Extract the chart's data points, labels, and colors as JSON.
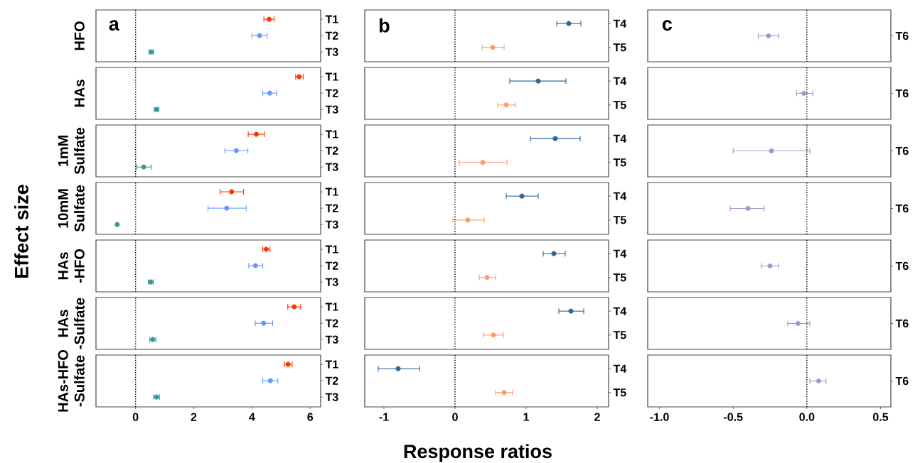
{
  "chart_data": [
    {
      "type": "scatter",
      "orientation": "horizontal",
      "title": "a",
      "ylabel": "HFO",
      "annotations": [
        "Effect size",
        "Response ratios"
      ],
      "categories": [
        "T1",
        "T2",
        "T3"
      ],
      "values": [
        4.59,
        4.26,
        0.54
      ],
      "errors": [
        [
          4.41,
          4.76
        ],
        [
          4.0,
          4.52
        ],
        [
          0.46,
          0.62
        ]
      ],
      "colors": [
        "#ff3300",
        "#6699ff",
        "#339999"
      ],
      "xlim": [
        -1.36,
        6.36
      ],
      "tick_labels": "y",
      "ref_lines": [
        {
          "axis": "x",
          "value": 0,
          "line_style": "dotted"
        }
      ]
    },
    {
      "type": "scatter",
      "orientation": "horizontal",
      "title": "b",
      "categories": [
        "T4",
        "T5"
      ],
      "values": [
        1.6,
        0.53
      ],
      "errors": [
        [
          1.43,
          1.77
        ],
        [
          0.38,
          0.69
        ]
      ],
      "colors": [
        "#336699",
        "#ff9966"
      ],
      "xlim": [
        -1.27,
        2.16
      ],
      "tick_labels": "y",
      "ref_lines": [
        {
          "axis": "x",
          "value": 0,
          "line_style": "dotted"
        }
      ]
    },
    {
      "type": "scatter",
      "orientation": "horizontal",
      "title": "c",
      "categories": [
        "T6"
      ],
      "values": [
        -0.26
      ],
      "errors": [
        [
          -0.33,
          -0.19
        ]
      ],
      "colors": [
        "#9999cc"
      ],
      "xlim": [
        -1.08,
        0.57
      ],
      "tick_labels": "y",
      "ref_lines": [
        {
          "axis": "x",
          "value": 0,
          "line_style": "dotted"
        }
      ]
    },
    {
      "type": "scatter",
      "orientation": "horizontal",
      "ylabel": "HAs",
      "categories": [
        "T1",
        "T2",
        "T3"
      ],
      "values": [
        5.62,
        4.61,
        0.72
      ],
      "errors": [
        [
          5.5,
          5.76
        ],
        [
          4.37,
          4.85
        ],
        [
          0.64,
          0.8
        ]
      ],
      "colors": [
        "#ff3300",
        "#6699ff",
        "#339999"
      ],
      "xlim": [
        -1.36,
        6.36
      ],
      "tick_labels": "y",
      "ref_lines": [
        {
          "axis": "x",
          "value": 0,
          "line_style": "dotted"
        }
      ]
    },
    {
      "type": "scatter",
      "orientation": "horizontal",
      "categories": [
        "T4",
        "T5"
      ],
      "values": [
        1.17,
        0.72
      ],
      "errors": [
        [
          0.77,
          1.56
        ],
        [
          0.6,
          0.85
        ]
      ],
      "colors": [
        "#336699",
        "#ff9966"
      ],
      "xlim": [
        -1.27,
        2.16
      ],
      "tick_labels": "y",
      "ref_lines": [
        {
          "axis": "x",
          "value": 0,
          "line_style": "dotted"
        }
      ]
    },
    {
      "type": "scatter",
      "orientation": "horizontal",
      "categories": [
        "T6"
      ],
      "values": [
        -0.02
      ],
      "errors": [
        [
          -0.07,
          0.04
        ]
      ],
      "colors": [
        "#9999cc"
      ],
      "xlim": [
        -1.08,
        0.57
      ],
      "tick_labels": "y",
      "ref_lines": [
        {
          "axis": "x",
          "value": 0,
          "line_style": "dotted"
        }
      ]
    },
    {
      "type": "scatter",
      "orientation": "horizontal",
      "ylabel": "1mM Sulfate",
      "categories": [
        "T1",
        "T2",
        "T3"
      ],
      "values": [
        4.15,
        3.46,
        0.28
      ],
      "errors": [
        [
          3.87,
          4.43
        ],
        [
          3.07,
          3.86
        ],
        [
          0.04,
          0.54
        ]
      ],
      "colors": [
        "#ff3300",
        "#6699ff",
        "#339999"
      ],
      "xlim": [
        -1.36,
        6.36
      ],
      "tick_labels": "y",
      "ref_lines": [
        {
          "axis": "x",
          "value": 0,
          "line_style": "dotted"
        }
      ]
    },
    {
      "type": "scatter",
      "orientation": "horizontal",
      "categories": [
        "T4",
        "T5"
      ],
      "values": [
        1.41,
        0.39
      ],
      "errors": [
        [
          1.06,
          1.76
        ],
        [
          0.06,
          0.73
        ]
      ],
      "colors": [
        "#336699",
        "#ff9966"
      ],
      "xlim": [
        -1.27,
        2.16
      ],
      "tick_labels": "y",
      "ref_lines": [
        {
          "axis": "x",
          "value": 0,
          "line_style": "dotted"
        }
      ]
    },
    {
      "type": "scatter",
      "orientation": "horizontal",
      "categories": [
        "T6"
      ],
      "values": [
        -0.24
      ],
      "errors": [
        [
          -0.5,
          0.02
        ]
      ],
      "colors": [
        "#9999cc"
      ],
      "xlim": [
        -1.08,
        0.57
      ],
      "tick_labels": "y",
      "ref_lines": [
        {
          "axis": "x",
          "value": 0,
          "line_style": "dotted"
        }
      ]
    },
    {
      "type": "scatter",
      "orientation": "horizontal",
      "ylabel": "10mM Sulfate",
      "categories": [
        "T1",
        "T2",
        "T3"
      ],
      "values": [
        3.3,
        3.13,
        -0.63
      ],
      "errors": [
        [
          2.91,
          3.71
        ],
        [
          2.49,
          3.8
        ],
        null
      ],
      "colors": [
        "#ff3300",
        "#6699ff",
        "#339999"
      ],
      "xlim": [
        -1.36,
        6.36
      ],
      "tick_labels": "y",
      "ref_lines": [
        {
          "axis": "x",
          "value": 0,
          "line_style": "dotted"
        }
      ]
    },
    {
      "type": "scatter",
      "orientation": "horizontal",
      "categories": [
        "T4",
        "T5"
      ],
      "values": [
        0.94,
        0.18
      ],
      "errors": [
        [
          0.72,
          1.17
        ],
        [
          -0.03,
          0.41
        ]
      ],
      "colors": [
        "#336699",
        "#ff9966"
      ],
      "xlim": [
        -1.27,
        2.16
      ],
      "tick_labels": "y",
      "ref_lines": [
        {
          "axis": "x",
          "value": 0,
          "line_style": "dotted"
        }
      ]
    },
    {
      "type": "scatter",
      "orientation": "horizontal",
      "categories": [
        "T6"
      ],
      "values": [
        -0.4
      ],
      "errors": [
        [
          -0.52,
          -0.29
        ]
      ],
      "colors": [
        "#9999cc"
      ],
      "xlim": [
        -1.08,
        0.57
      ],
      "tick_labels": "y",
      "ref_lines": [
        {
          "axis": "x",
          "value": 0,
          "line_style": "dotted"
        }
      ]
    },
    {
      "type": "scatter",
      "orientation": "horizontal",
      "ylabel": "HAs -HFO",
      "categories": [
        "T1",
        "T2",
        "T3"
      ],
      "values": [
        4.49,
        4.12,
        0.52
      ],
      "errors": [
        [
          4.37,
          4.62
        ],
        [
          3.89,
          4.37
        ],
        [
          0.44,
          0.61
        ]
      ],
      "colors": [
        "#ff3300",
        "#6699ff",
        "#339999"
      ],
      "xlim": [
        -1.36,
        6.36
      ],
      "tick_labels": "y",
      "ref_lines": [
        {
          "axis": "x",
          "value": 0,
          "line_style": "dotted"
        }
      ]
    },
    {
      "type": "scatter",
      "orientation": "horizontal",
      "categories": [
        "T4",
        "T5"
      ],
      "values": [
        1.39,
        0.45
      ],
      "errors": [
        [
          1.24,
          1.55
        ],
        [
          0.34,
          0.57
        ]
      ],
      "colors": [
        "#336699",
        "#ff9966"
      ],
      "xlim": [
        -1.27,
        2.16
      ],
      "tick_labels": "y",
      "ref_lines": [
        {
          "axis": "x",
          "value": 0,
          "line_style": "dotted"
        }
      ]
    },
    {
      "type": "scatter",
      "orientation": "horizontal",
      "categories": [
        "T6"
      ],
      "values": [
        -0.25
      ],
      "errors": [
        [
          -0.31,
          -0.19
        ]
      ],
      "colors": [
        "#9999cc"
      ],
      "xlim": [
        -1.08,
        0.57
      ],
      "tick_labels": "y",
      "ref_lines": [
        {
          "axis": "x",
          "value": 0,
          "line_style": "dotted"
        }
      ]
    },
    {
      "type": "scatter",
      "orientation": "horizontal",
      "ylabel": "HAs -Sulfate",
      "categories": [
        "T1",
        "T2",
        "T3"
      ],
      "values": [
        5.45,
        4.4,
        0.59
      ],
      "errors": [
        [
          5.23,
          5.67
        ],
        [
          4.11,
          4.71
        ],
        [
          0.49,
          0.7
        ]
      ],
      "colors": [
        "#ff3300",
        "#6699ff",
        "#339999"
      ],
      "xlim": [
        -1.36,
        6.36
      ],
      "tick_labels": "y",
      "ref_lines": [
        {
          "axis": "x",
          "value": 0,
          "line_style": "dotted"
        }
      ]
    },
    {
      "type": "scatter",
      "orientation": "horizontal",
      "categories": [
        "T4",
        "T5"
      ],
      "values": [
        1.63,
        0.54
      ],
      "errors": [
        [
          1.46,
          1.81
        ],
        [
          0.4,
          0.68
        ]
      ],
      "colors": [
        "#336699",
        "#ff9966"
      ],
      "xlim": [
        -1.27,
        2.16
      ],
      "tick_labels": "y",
      "ref_lines": [
        {
          "axis": "x",
          "value": 0,
          "line_style": "dotted"
        }
      ]
    },
    {
      "type": "scatter",
      "orientation": "horizontal",
      "categories": [
        "T6"
      ],
      "values": [
        -0.06
      ],
      "errors": [
        [
          -0.13,
          0.02
        ]
      ],
      "colors": [
        "#9999cc"
      ],
      "xlim": [
        -1.08,
        0.57
      ],
      "tick_labels": "y",
      "ref_lines": [
        {
          "axis": "x",
          "value": 0,
          "line_style": "dotted"
        }
      ]
    },
    {
      "type": "scatter",
      "orientation": "horizontal",
      "ylabel": "HAs-HFO -Sulfate",
      "categories": [
        "T1",
        "T2",
        "T3"
      ],
      "values": [
        5.24,
        4.63,
        0.72
      ],
      "errors": [
        [
          5.12,
          5.38
        ],
        [
          4.37,
          4.89
        ],
        [
          0.62,
          0.82
        ]
      ],
      "colors": [
        "#ff3300",
        "#6699ff",
        "#339999"
      ],
      "xlim": [
        -1.36,
        6.36
      ],
      "xticks": [
        0,
        2,
        4,
        6
      ],
      "ref_lines": [
        {
          "axis": "x",
          "value": 0,
          "line_style": "dotted"
        }
      ]
    },
    {
      "type": "scatter",
      "orientation": "horizontal",
      "categories": [
        "T4",
        "T5"
      ],
      "values": [
        -0.8,
        0.69
      ],
      "errors": [
        [
          -1.08,
          -0.5
        ],
        [
          0.57,
          0.81
        ]
      ],
      "colors": [
        "#336699",
        "#ff9966"
      ],
      "xlim": [
        -1.27,
        2.16
      ],
      "xticks": [
        -1,
        0,
        1,
        2
      ],
      "ref_lines": [
        {
          "axis": "x",
          "value": 0,
          "line_style": "dotted"
        }
      ]
    },
    {
      "type": "scatter",
      "orientation": "horizontal",
      "categories": [
        "T6"
      ],
      "values": [
        0.08
      ],
      "errors": [
        [
          0.02,
          0.13
        ]
      ],
      "colors": [
        "#9999cc"
      ],
      "xlim": [
        -1.08,
        0.57
      ],
      "xticks": [
        {
          "value": -1,
          "label": "-1.0"
        },
        {
          "value": -0.5,
          "label": "-0.5"
        },
        {
          "value": 0,
          "label": "0.0"
        },
        {
          "value": 0.5,
          "label": "0.5"
        }
      ],
      "ref_lines": [
        {
          "axis": "x",
          "value": 0,
          "line_style": "dotted"
        }
      ]
    }
  ]
}
